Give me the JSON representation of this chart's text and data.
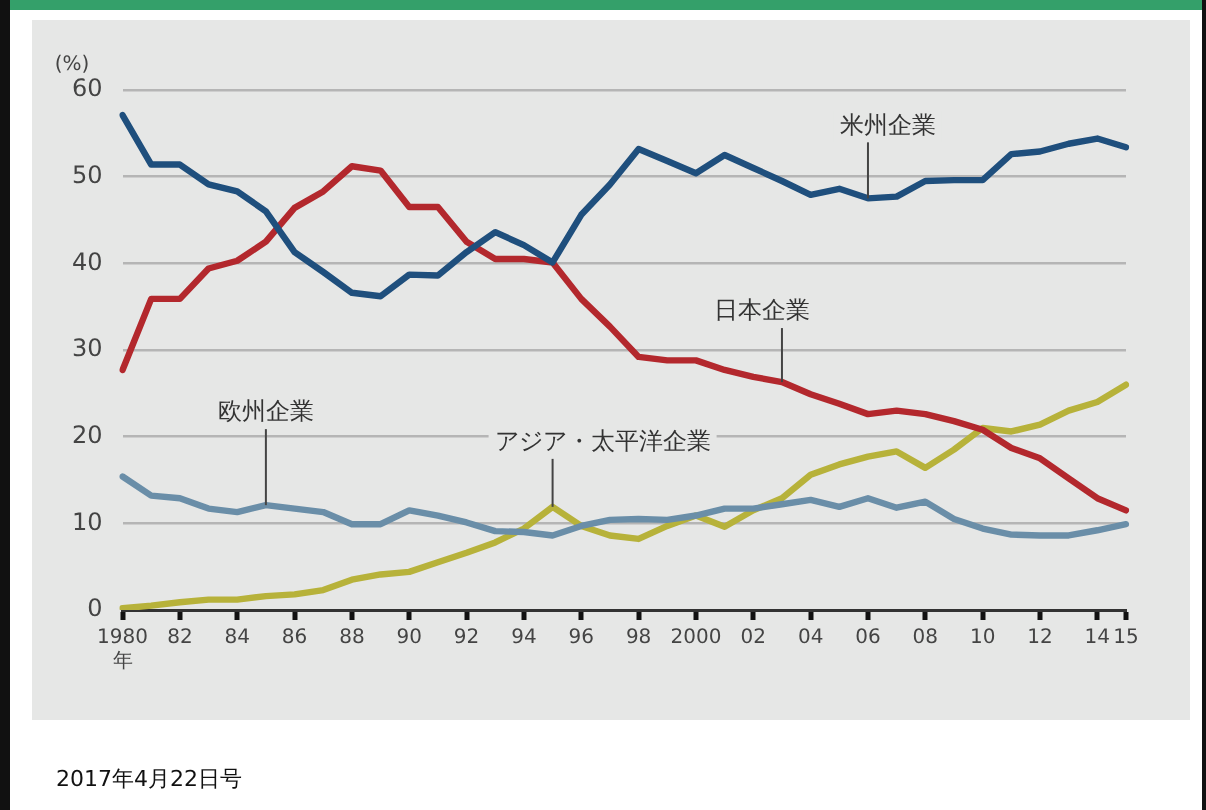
{
  "chart_data": {
    "type": "line",
    "ylabel": "(%)",
    "categories": [
      "1980年",
      null,
      "82",
      null,
      "84",
      null,
      "86",
      null,
      "88",
      null,
      "90",
      null,
      "92",
      null,
      "94",
      null,
      "96",
      null,
      "98",
      null,
      "2000",
      null,
      "02",
      null,
      "04",
      null,
      "06",
      null,
      "08",
      null,
      "10",
      null,
      "12",
      null,
      "14",
      "15"
    ],
    "series": [
      {
        "name": "米州企業",
        "color": "#1f4f7d",
        "values": [
          57.1,
          51.4,
          51.4,
          49.1,
          48.3,
          46,
          41.3,
          39,
          36.6,
          36.2,
          38.7,
          38.6,
          41.3,
          43.6,
          42.1,
          40.1,
          45.6,
          49.1,
          53.2,
          51.8,
          50.4,
          52.5,
          51,
          49.5,
          47.9,
          48.6,
          47.5,
          47.7,
          49.5,
          49.6,
          49.6,
          52.6,
          52.9,
          53.8,
          54.4,
          53.4
        ]
      },
      {
        "name": "日本企業",
        "color": "#b3282d",
        "values": [
          27.7,
          35.9,
          35.9,
          39.4,
          40.3,
          42.5,
          46.4,
          48.3,
          51.2,
          50.7,
          46.5,
          46.5,
          42.5,
          40.5,
          40.5,
          40.1,
          35.9,
          32.7,
          29.2,
          28.8,
          28.8,
          27.7,
          26.9,
          26.3,
          24.9,
          23.8,
          22.6,
          23,
          22.6,
          21.8,
          20.8,
          18.7,
          17.5,
          15.2,
          12.9,
          11.5
        ]
      },
      {
        "name": "欧州企業",
        "color": "#6a8ea8",
        "values": [
          15.4,
          13.2,
          12.9,
          11.7,
          11.3,
          12.1,
          11.7,
          11.3,
          9.9,
          9.9,
          11.5,
          10.9,
          10.1,
          9.1,
          9,
          8.6,
          9.7,
          10.4,
          10.5,
          10.4,
          10.9,
          11.7,
          11.7,
          12.2,
          12.7,
          11.9,
          12.9,
          11.8,
          12.5,
          10.5,
          9.4,
          8.7,
          8.6,
          8.6,
          9.2,
          9.9
        ]
      },
      {
        "name": "アジア・太平洋企業",
        "color": "#b7b23a",
        "values": [
          0.2,
          0.5,
          0.9,
          1.2,
          1.2,
          1.6,
          1.8,
          2.3,
          3.5,
          4.1,
          4.4,
          5.5,
          6.6,
          7.8,
          9.4,
          11.9,
          9.7,
          8.6,
          8.2,
          9.7,
          10.9,
          9.6,
          11.5,
          12.9,
          15.6,
          16.8,
          17.7,
          18.3,
          16.4,
          18.5,
          21,
          20.6,
          21.4,
          23,
          24,
          26
        ]
      }
    ],
    "ylim": [
      0,
      60
    ],
    "yticks": [
      0,
      10,
      20,
      30,
      40,
      50,
      60
    ],
    "grid": "y",
    "legend": false,
    "marker": "none",
    "line_style": "solid",
    "annotations": [
      "2017年4月22日号"
    ]
  }
}
